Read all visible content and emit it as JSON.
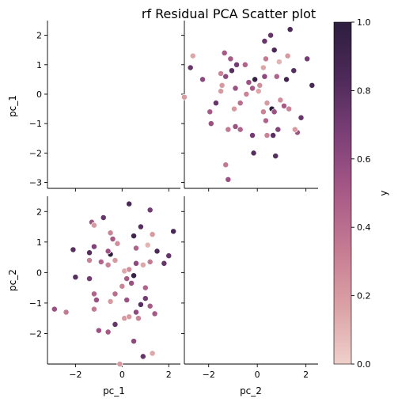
{
  "chart_data": {
    "type": "scatter",
    "title": "rf Residual PCA Scatter plot",
    "variables": [
      "pc_1",
      "pc_2"
    ],
    "hue_label": "y",
    "hue_range": [
      0,
      1
    ],
    "colorbar_ticks": [
      "0.0",
      "0.2",
      "0.4",
      "0.6",
      "0.8",
      "1.0"
    ],
    "colorbar_tick_values": [
      0,
      0.2,
      0.4,
      0.6,
      0.8,
      1.0
    ],
    "colormap": [
      "#efd0ca",
      "#dba2a5",
      "#c57c93",
      "#a85a87",
      "#7d4078",
      "#4e2a5a",
      "#2d1e3e"
    ],
    "pc_1_range": [
      -3.2,
      2.5
    ],
    "pc_2_range": [
      -3.0,
      2.5
    ],
    "pc_1_ticks": [
      "−2",
      "0",
      "2"
    ],
    "pc_1_tick_values": [
      -2,
      0,
      2
    ],
    "pc_2_ticks": [
      "−2",
      "0",
      "2"
    ],
    "pc_2_tick_values": [
      -2,
      0,
      2
    ],
    "yticks_pc_1": [
      "−3",
      "−2",
      "−1",
      "0",
      "1",
      "2"
    ],
    "yticks_pc_1_values": [
      -3,
      -2,
      -1,
      0,
      1,
      2
    ],
    "yticks_pc_2": [
      "−2",
      "−1",
      "0",
      "1",
      "2"
    ],
    "yticks_pc_2_values": [
      -2,
      -1,
      0,
      1,
      2
    ],
    "points": [
      {
        "pc_1": 0.3,
        "pc_2": 2.25,
        "y": 0.85
      },
      {
        "pc_1": 1.2,
        "pc_2": 2.05,
        "y": 0.7
      },
      {
        "pc_1": -1.3,
        "pc_2": 1.65,
        "y": 0.55
      },
      {
        "pc_1": -0.8,
        "pc_2": 1.8,
        "y": 0.75
      },
      {
        "pc_1": 0.8,
        "pc_2": 1.5,
        "y": 0.8
      },
      {
        "pc_1": -0.5,
        "pc_2": 1.3,
        "y": 0.3
      },
      {
        "pc_1": -1.2,
        "pc_2": 1.55,
        "y": 0.2
      },
      {
        "pc_1": 0.5,
        "pc_2": 1.2,
        "y": 0.9
      },
      {
        "pc_1": 1.3,
        "pc_2": 1.25,
        "y": 0.2
      },
      {
        "pc_1": 2.2,
        "pc_2": 1.35,
        "y": 0.85
      },
      {
        "pc_1": 1.1,
        "pc_2": 0.9,
        "y": 0.1
      },
      {
        "pc_1": -2.1,
        "pc_2": 0.75,
        "y": 0.8
      },
      {
        "pc_1": -1.2,
        "pc_2": 0.85,
        "y": 0.65
      },
      {
        "pc_1": -0.4,
        "pc_2": 1.1,
        "y": 0.5
      },
      {
        "pc_1": -0.2,
        "pc_2": 0.95,
        "y": 0.25
      },
      {
        "pc_1": 0.6,
        "pc_2": 0.8,
        "y": 0.45
      },
      {
        "pc_1": 1.5,
        "pc_2": 0.7,
        "y": 0.85
      },
      {
        "pc_1": 2.0,
        "pc_2": 0.55,
        "y": 0.75
      },
      {
        "pc_1": -0.5,
        "pc_2": 0.6,
        "y": 1.0
      },
      {
        "pc_1": -0.6,
        "pc_2": 0.7,
        "y": 0.55
      },
      {
        "pc_1": -1.4,
        "pc_2": 0.4,
        "y": 0.3
      },
      {
        "pc_1": -0.9,
        "pc_2": 0.35,
        "y": 0.45
      },
      {
        "pc_1": -0.3,
        "pc_2": 0.4,
        "y": 0.2
      },
      {
        "pc_1": 0.1,
        "pc_2": 0.05,
        "y": 0.15
      },
      {
        "pc_1": 0.3,
        "pc_2": 0.1,
        "y": 0.25
      },
      {
        "pc_1": 0.6,
        "pc_2": 0.3,
        "y": 0.6
      },
      {
        "pc_1": 0.9,
        "pc_2": 0.25,
        "y": 0.15
      },
      {
        "pc_1": 1.2,
        "pc_2": 0.35,
        "y": 0.35
      },
      {
        "pc_1": 1.8,
        "pc_2": 0.3,
        "y": 0.75
      },
      {
        "pc_1": -2.0,
        "pc_2": -0.15,
        "y": 0.8
      },
      {
        "pc_1": -0.6,
        "pc_2": 0.25,
        "y": 0.3
      },
      {
        "pc_1": 0.5,
        "pc_2": -0.1,
        "y": 0.95
      },
      {
        "pc_1": 0.2,
        "pc_2": -0.2,
        "y": 0.5
      },
      {
        "pc_1": 0.0,
        "pc_2": -0.45,
        "y": 0.3
      },
      {
        "pc_1": 0.4,
        "pc_2": -0.35,
        "y": 0.55
      },
      {
        "pc_1": 1.0,
        "pc_2": -0.5,
        "y": 0.45
      },
      {
        "pc_1": -1.4,
        "pc_2": -0.2,
        "y": 0.7
      },
      {
        "pc_1": -1.2,
        "pc_2": -0.7,
        "y": 0.45
      },
      {
        "pc_1": -0.3,
        "pc_2": -0.7,
        "y": 0.4
      },
      {
        "pc_1": 0.2,
        "pc_2": -0.9,
        "y": 0.55
      },
      {
        "pc_1": -1.1,
        "pc_2": -0.9,
        "y": 0.55
      },
      {
        "pc_1": -0.5,
        "pc_2": -0.95,
        "y": 0.2
      },
      {
        "pc_1": 1.0,
        "pc_2": -0.85,
        "y": 0.7
      },
      {
        "pc_1": 0.8,
        "pc_2": -1.05,
        "y": 0.8
      },
      {
        "pc_1": 1.2,
        "pc_2": -1.1,
        "y": 0.5
      },
      {
        "pc_1": -2.9,
        "pc_2": -1.2,
        "y": 0.55
      },
      {
        "pc_1": -2.4,
        "pc_2": -1.3,
        "y": 0.35
      },
      {
        "pc_1": -1.2,
        "pc_2": -1.2,
        "y": 0.35
      },
      {
        "pc_1": 0.6,
        "pc_2": -1.3,
        "y": 0.6
      },
      {
        "pc_1": 1.4,
        "pc_2": -1.35,
        "y": 0.5
      },
      {
        "pc_1": 0.7,
        "pc_2": -1.5,
        "y": 0.3
      },
      {
        "pc_1": -1.0,
        "pc_2": -1.9,
        "y": 0.55
      },
      {
        "pc_1": -0.6,
        "pc_2": -1.95,
        "y": 0.5
      },
      {
        "pc_1": -0.3,
        "pc_2": -1.7,
        "y": 0.75
      },
      {
        "pc_1": 0.1,
        "pc_2": -1.5,
        "y": 0.2
      },
      {
        "pc_1": 0.3,
        "pc_2": -1.45,
        "y": 0.2
      },
      {
        "pc_1": 0.5,
        "pc_2": -2.25,
        "y": 0.6
      },
      {
        "pc_1": 1.3,
        "pc_2": -2.65,
        "y": 0.15
      },
      {
        "pc_1": 0.9,
        "pc_2": -2.75,
        "y": 0.75
      },
      {
        "pc_1": -0.1,
        "pc_2": -3.0,
        "y": 0.2
      },
      {
        "pc_1": -1.4,
        "pc_2": 0.65,
        "y": 0.8
      }
    ]
  }
}
